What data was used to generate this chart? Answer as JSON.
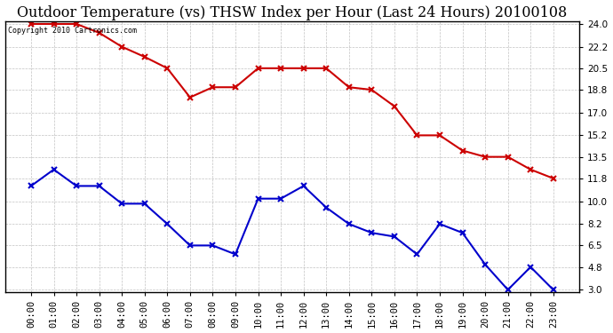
{
  "title": "Outdoor Temperature (vs) THSW Index per Hour (Last 24 Hours) 20100108",
  "copyright_text": "Copyright 2010 Cartronics.com",
  "x_labels": [
    "00:00",
    "01:00",
    "02:00",
    "03:00",
    "04:00",
    "05:00",
    "06:00",
    "07:00",
    "08:00",
    "09:00",
    "10:00",
    "11:00",
    "12:00",
    "13:00",
    "14:00",
    "15:00",
    "16:00",
    "17:00",
    "18:00",
    "19:00",
    "20:00",
    "21:00",
    "22:00",
    "23:00"
  ],
  "red_data": [
    24.0,
    24.0,
    24.0,
    23.3,
    22.2,
    21.4,
    20.5,
    18.2,
    19.0,
    19.0,
    20.5,
    20.5,
    20.5,
    20.5,
    19.0,
    18.8,
    17.5,
    15.2,
    15.2,
    14.0,
    13.5,
    13.5,
    12.5,
    11.8
  ],
  "blue_data": [
    11.2,
    12.5,
    11.2,
    11.2,
    9.8,
    9.8,
    8.2,
    6.5,
    6.5,
    5.8,
    10.2,
    10.2,
    11.2,
    9.5,
    8.2,
    7.5,
    7.2,
    5.8,
    8.2,
    7.5,
    5.0,
    3.0,
    4.8,
    3.0
  ],
  "ylim_min": 3.0,
  "ylim_max": 24.0,
  "yticks": [
    3.0,
    4.8,
    6.5,
    8.2,
    10.0,
    11.8,
    13.5,
    15.2,
    17.0,
    18.8,
    20.5,
    22.2,
    24.0
  ],
  "ytick_labels": [
    "3.0",
    "4.8",
    "6.5",
    "8.2",
    "10.0",
    "11.8",
    "13.5",
    "15.2",
    "17.0",
    "18.8",
    "20.5",
    "22.2",
    "24.0"
  ],
  "red_color": "#cc0000",
  "blue_color": "#0000cc",
  "bg_color": "#ffffff",
  "grid_color": "#bbbbbb",
  "title_fontsize": 11.5,
  "marker": "x",
  "marker_size": 5,
  "linewidth": 1.5
}
